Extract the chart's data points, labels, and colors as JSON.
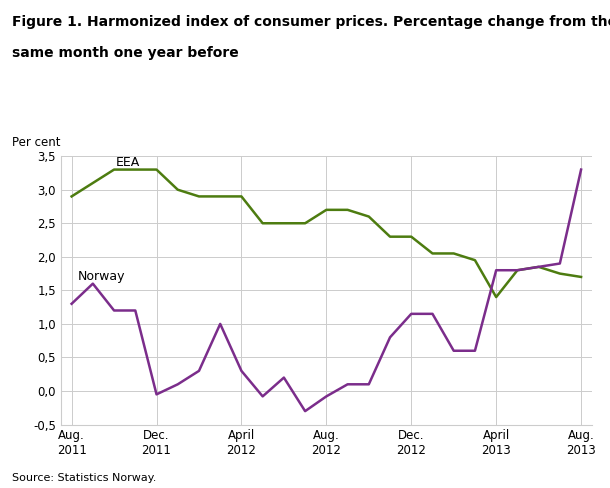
{
  "title_line1": "Figure 1. Harmonized index of consumer prices. Percentage change from the",
  "title_line2": "same month one year before",
  "ylabel_text": "Per cent",
  "source": "Source: Statistics Norway.",
  "eea_label": "EEA",
  "norway_label": "Norway",
  "eea_color": "#4d7c10",
  "norway_color": "#7b2d8b",
  "background_color": "#ffffff",
  "grid_color": "#cccccc",
  "ylim": [
    -0.5,
    3.5
  ],
  "x_tick_labels": [
    "Aug.\n2011",
    "Dec.\n2011",
    "April\n2012",
    "Aug.\n2012",
    "Dec.\n2012",
    "April\n2013",
    "Aug.\n2013"
  ],
  "x_tick_positions": [
    0,
    4,
    8,
    12,
    16,
    20,
    24
  ],
  "eea_values": [
    2.9,
    3.1,
    3.3,
    3.3,
    3.3,
    3.0,
    2.9,
    2.9,
    2.9,
    2.5,
    2.5,
    2.5,
    2.7,
    2.7,
    2.6,
    2.3,
    2.3,
    2.05,
    2.05,
    1.95,
    1.4,
    1.8,
    1.85,
    1.75,
    1.7
  ],
  "norway_values": [
    1.3,
    1.6,
    1.2,
    1.2,
    -0.05,
    0.1,
    0.3,
    1.0,
    0.3,
    -0.08,
    0.2,
    -0.3,
    -0.08,
    0.1,
    0.1,
    0.8,
    1.15,
    1.15,
    0.6,
    0.6,
    1.8,
    1.8,
    1.85,
    1.9,
    3.3
  ],
  "yticks": [
    -0.5,
    0.0,
    0.5,
    1.0,
    1.5,
    2.0,
    2.5,
    3.0,
    3.5
  ],
  "ytick_labels": [
    "-0,5",
    "0,0",
    "0,5",
    "1,0",
    "1,5",
    "2,0",
    "2,5",
    "3,0",
    "3,5"
  ]
}
